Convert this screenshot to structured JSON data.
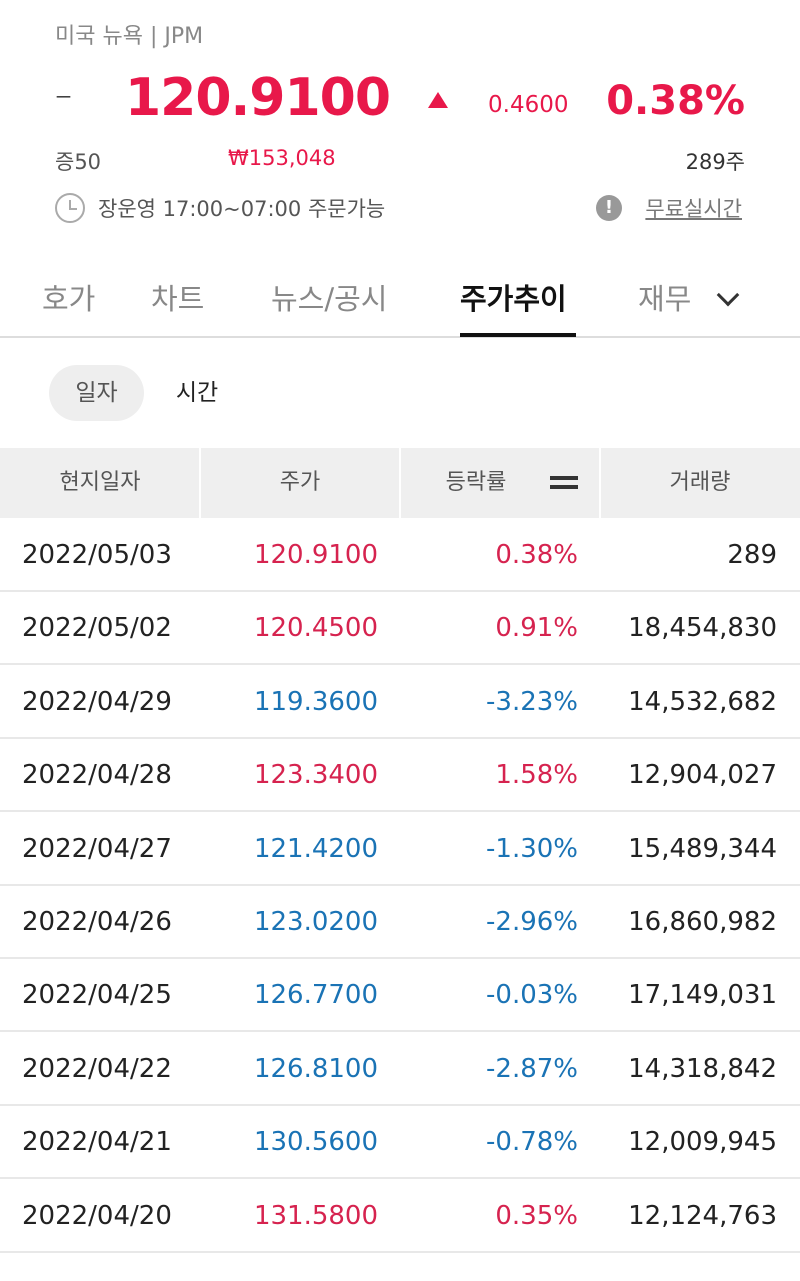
{
  "header": {
    "market": "미국 뉴욕 | JPM",
    "dash": "–",
    "price": "120.9100",
    "change": "0.4600",
    "change_pct": "0.38%",
    "certificate": "증50",
    "krw_price": "₩153,048",
    "shares": "289주",
    "session": "장운영 17:00~07:00 주문가능",
    "realtime_link": "무료실시간",
    "info_icon": "!"
  },
  "tabs": [
    {
      "label": "호가"
    },
    {
      "label": "차트"
    },
    {
      "label": "뉴스/공시"
    },
    {
      "label": "주가추이"
    },
    {
      "label": "재무"
    }
  ],
  "segments": {
    "daily": "일자",
    "hourly": "시간"
  },
  "table": {
    "headers": [
      "현지일자",
      "주가",
      "등락률",
      "거래량"
    ],
    "rows": [
      {
        "date": "2022/05/03",
        "price": "120.9100",
        "rate": "0.38%",
        "volume": "289",
        "trend": "up"
      },
      {
        "date": "2022/05/02",
        "price": "120.4500",
        "rate": "0.91%",
        "volume": "18,454,830",
        "trend": "up"
      },
      {
        "date": "2022/04/29",
        "price": "119.3600",
        "rate": "-3.23%",
        "volume": "14,532,682",
        "trend": "down"
      },
      {
        "date": "2022/04/28",
        "price": "123.3400",
        "rate": "1.58%",
        "volume": "12,904,027",
        "trend": "up"
      },
      {
        "date": "2022/04/27",
        "price": "121.4200",
        "rate": "-1.30%",
        "volume": "15,489,344",
        "trend": "down"
      },
      {
        "date": "2022/04/26",
        "price": "123.0200",
        "rate": "-2.96%",
        "volume": "16,860,982",
        "trend": "down"
      },
      {
        "date": "2022/04/25",
        "price": "126.7700",
        "rate": "-0.03%",
        "volume": "17,149,031",
        "trend": "down"
      },
      {
        "date": "2022/04/22",
        "price": "126.8100",
        "rate": "-2.87%",
        "volume": "14,318,842",
        "trend": "down"
      },
      {
        "date": "2022/04/21",
        "price": "130.5600",
        "rate": "-0.78%",
        "volume": "12,009,945",
        "trend": "down"
      },
      {
        "date": "2022/04/20",
        "price": "131.5800",
        "rate": "0.35%",
        "volume": "12,124,763",
        "trend": "up"
      }
    ]
  },
  "colors": {
    "up": "#d6234f",
    "down": "#1a73b5",
    "accent": "#e8184a"
  }
}
